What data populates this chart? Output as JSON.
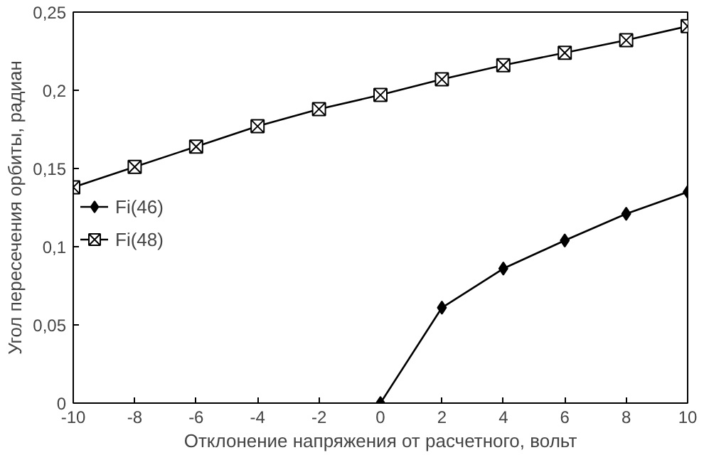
{
  "chart_data": {
    "type": "line",
    "xlabel": "Отклонение напряжения от расчетного, вольт",
    "ylabel": "Угол пересечения орбиты, радиан",
    "xlim": [
      -10,
      10
    ],
    "ylim": [
      0,
      0.25
    ],
    "xticks": [
      -10,
      -8,
      -6,
      -4,
      -2,
      0,
      2,
      4,
      6,
      8,
      10
    ],
    "yticks": [
      0,
      {
        "value": 0.05,
        "label": "0,05"
      },
      {
        "value": 0.1,
        "label": "0,1"
      },
      {
        "value": 0.15,
        "label": "0,15"
      },
      {
        "value": 0.2,
        "label": "0,2"
      },
      {
        "value": 0.25,
        "label": "0,25"
      }
    ],
    "legend": "left",
    "grid": false,
    "line_style": "solid",
    "series": [
      {
        "name": "Fi(46)",
        "color": "#000000",
        "marker": "diamond",
        "x": [
          0,
          2,
          4,
          6,
          8,
          10
        ],
        "values": [
          0,
          0.061,
          0.086,
          0.104,
          0.121,
          0.135
        ]
      },
      {
        "name": "Fi(48)",
        "color": "#000000",
        "marker": "cross",
        "x": [
          -10,
          -8,
          -6,
          -4,
          -2,
          0,
          2,
          4,
          6,
          8,
          10
        ],
        "values": [
          0.138,
          0.151,
          0.164,
          0.177,
          0.188,
          0.197,
          0.207,
          0.216,
          0.224,
          0.232,
          0.241
        ]
      }
    ]
  }
}
